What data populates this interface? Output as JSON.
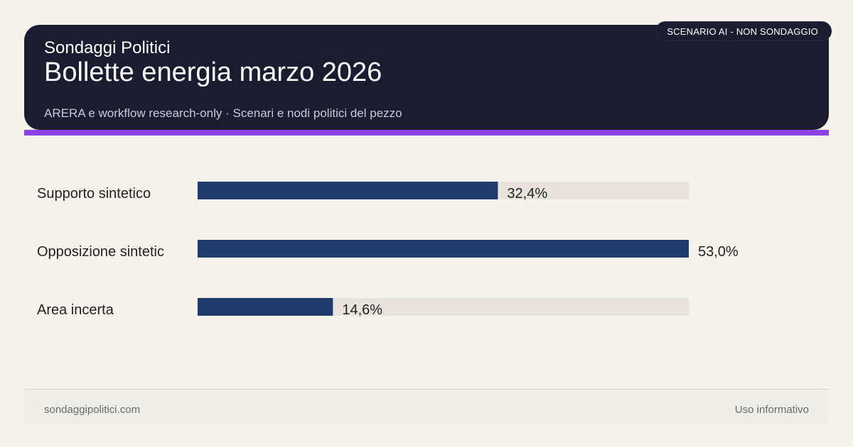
{
  "header": {
    "brand": "Sondaggi Politici",
    "title": "Bollette energia marzo 2026",
    "subtitle": "ARERA e workflow research-only · Scenari e nodi politici del pezzo",
    "badge": "SCENARIO AI - NON SONDAGGIO"
  },
  "colors": {
    "bar": "#1f3a6b",
    "track": "#e8e3dc",
    "header_bg": "#1c1c30",
    "accent": "#8a44e6"
  },
  "chart_data": {
    "type": "bar",
    "orientation": "horizontal",
    "categories": [
      "Supporto sintetico",
      "Opposizione sintetic",
      "Area incerta"
    ],
    "values": [
      32.4,
      53.0,
      14.6
    ],
    "value_labels": [
      "32,4%",
      "53,0%",
      "14,6%"
    ],
    "xlim": [
      0,
      53.0
    ],
    "grid": false,
    "legend": "none"
  },
  "footer": {
    "site": "sondaggipolitici.com",
    "note": "Uso informativo"
  }
}
